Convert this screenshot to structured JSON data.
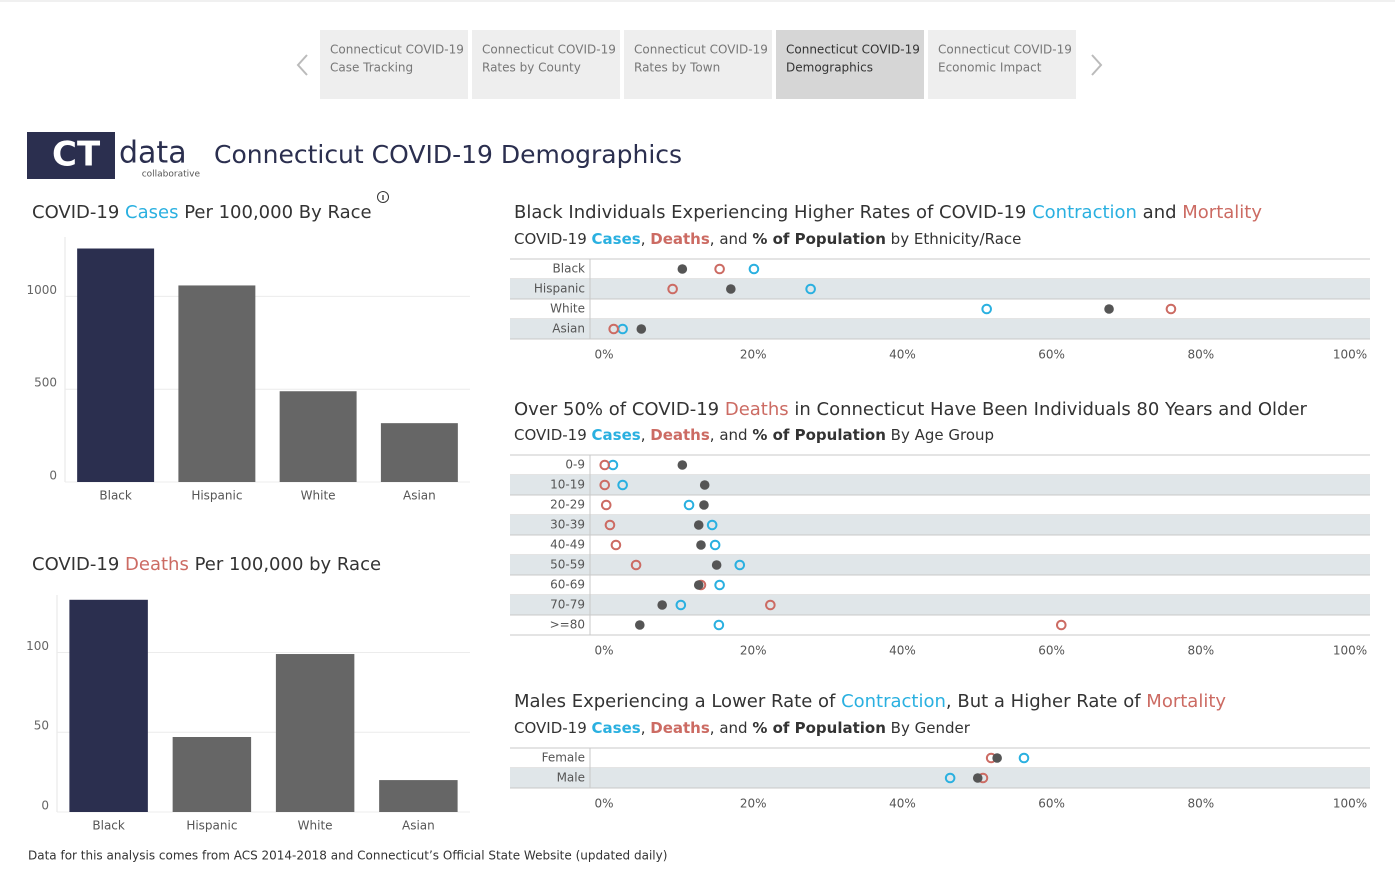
{
  "nav": {
    "tabs": [
      {
        "lines": [
          "Connecticut COVID-19",
          "Case Tracking"
        ]
      },
      {
        "lines": [
          "Connecticut COVID-19",
          "Rates by County"
        ]
      },
      {
        "lines": [
          "Connecticut COVID-19",
          "Rates by Town"
        ]
      },
      {
        "lines": [
          "Connecticut COVID-19",
          "Demographics"
        ]
      },
      {
        "lines": [
          "Connecticut COVID-19",
          "Economic Impact"
        ]
      }
    ],
    "active": 3
  },
  "header": {
    "logo": {
      "mark": "CT",
      "word": "data",
      "tagline": "collaborative"
    },
    "title": "Connecticut COVID-19 Demographics"
  },
  "chart_data": [
    {
      "type": "bar",
      "title": [
        {
          "text": "COVID-19 "
        },
        {
          "text": "Cases",
          "color": "#2ab0e0"
        },
        {
          "text": " Per 100,000 By Race"
        }
      ],
      "categories": [
        "Black",
        "Hispanic",
        "White",
        "Asian"
      ],
      "values": [
        1258,
        1059,
        489,
        317
      ],
      "colors": [
        "#2b2f4f",
        "#666666",
        "#666666",
        "#666666"
      ],
      "ylim": [
        0,
        1320
      ],
      "yticks": [
        0,
        500,
        1000
      ],
      "grid": true
    },
    {
      "type": "bar",
      "title": [
        {
          "text": "COVID-19 "
        },
        {
          "text": "Deaths",
          "color": "#cc6b63"
        },
        {
          "text": " Per 100,000 by Race"
        }
      ],
      "categories": [
        "Black",
        "Hispanic",
        "White",
        "Asian"
      ],
      "values": [
        133,
        47,
        99,
        20
      ],
      "colors": [
        "#2b2f4f",
        "#666666",
        "#666666",
        "#666666"
      ],
      "ylim": [
        0,
        136
      ],
      "yticks": [
        0,
        50,
        100
      ],
      "grid": true
    },
    {
      "type": "dot",
      "title": [
        {
          "text": "Black Individuals Experiencing Higher Rates of COVID-19 "
        },
        {
          "text": "Contraction",
          "color": "#2ab0e0"
        },
        {
          "text": " and "
        },
        {
          "text": "Mortality",
          "color": "#cc6b63"
        }
      ],
      "subtitle": [
        {
          "text": "COVID-19 "
        },
        {
          "text": "Cases",
          "color": "#2ab0e0",
          "bold": true
        },
        {
          "text": ", "
        },
        {
          "text": "Deaths",
          "color": "#cc6b63",
          "bold": true
        },
        {
          "text": ", and "
        },
        {
          "text": "% of Population",
          "bold": true
        },
        {
          "text": " by Ethnicity/Race"
        }
      ],
      "categories": [
        "Black",
        "Hispanic",
        "White",
        "Asian"
      ],
      "series": [
        {
          "color": "#2ab0e0",
          "marker": "hollow",
          "values": [
            20.1,
            27.7,
            51.3,
            2.5
          ]
        },
        {
          "color": "#cc6b63",
          "marker": "hollow",
          "values": [
            15.5,
            9.2,
            76.0,
            1.3
          ]
        },
        {
          "color": "#555555",
          "marker": "filled",
          "values": [
            10.5,
            17.0,
            67.7,
            5.0
          ]
        }
      ],
      "xlim": [
        0,
        100
      ],
      "xticks": [
        {
          "value": 0,
          "label": "0%"
        },
        {
          "value": 20,
          "label": "20%"
        },
        {
          "value": 40,
          "label": "40%"
        },
        {
          "value": 60,
          "label": "60%"
        },
        {
          "value": 80,
          "label": "80%"
        },
        {
          "value": 100,
          "label": "100%"
        }
      ],
      "row_shading": true
    },
    {
      "type": "dot",
      "title": [
        {
          "text": "Over 50% of COVID-19 "
        },
        {
          "text": "Deaths",
          "color": "#cc6b63"
        },
        {
          "text": " in Connecticut Have Been Individuals 80 Years and Older"
        }
      ],
      "subtitle": [
        {
          "text": "COVID-19 "
        },
        {
          "text": "Cases",
          "color": "#2ab0e0",
          "bold": true
        },
        {
          "text": ", "
        },
        {
          "text": "Deaths",
          "color": "#cc6b63",
          "bold": true
        },
        {
          "text": ", and "
        },
        {
          "text": "% of Population",
          "bold": true
        },
        {
          "text": " By Age Group"
        }
      ],
      "categories": [
        "0-9",
        "10-19",
        "20-29",
        "30-39",
        "40-49",
        "50-59",
        "60-69",
        "70-79",
        ">=80"
      ],
      "series": [
        {
          "color": "#2ab0e0",
          "marker": "hollow",
          "values": [
            1.2,
            2.5,
            11.4,
            14.5,
            14.9,
            18.2,
            15.5,
            10.3,
            15.4
          ]
        },
        {
          "color": "#cc6b63",
          "marker": "hollow",
          "values": [
            0.1,
            0.1,
            0.3,
            0.8,
            1.6,
            4.3,
            13.0,
            22.3,
            61.3
          ]
        },
        {
          "color": "#555555",
          "marker": "filled",
          "values": [
            10.5,
            13.5,
            13.4,
            12.7,
            13.0,
            15.1,
            12.7,
            7.8,
            4.8
          ]
        }
      ],
      "xlim": [
        0,
        100
      ],
      "xticks": [
        {
          "value": 0,
          "label": "0%"
        },
        {
          "value": 20,
          "label": "20%"
        },
        {
          "value": 40,
          "label": "40%"
        },
        {
          "value": 60,
          "label": "60%"
        },
        {
          "value": 80,
          "label": "80%"
        },
        {
          "value": 100,
          "label": "100%"
        }
      ],
      "row_shading": true
    },
    {
      "type": "dot",
      "title": [
        {
          "text": "Males Experiencing a Lower Rate of "
        },
        {
          "text": "Contraction",
          "color": "#2ab0e0"
        },
        {
          "text": ", But a Higher Rate of "
        },
        {
          "text": "Mortality",
          "color": "#cc6b63"
        }
      ],
      "subtitle": [
        {
          "text": "COVID-19 "
        },
        {
          "text": "Cases",
          "color": "#2ab0e0",
          "bold": true
        },
        {
          "text": ", "
        },
        {
          "text": "Deaths",
          "color": "#cc6b63",
          "bold": true
        },
        {
          "text": ", and "
        },
        {
          "text": "% of Population",
          "bold": true
        },
        {
          "text": " By Gender"
        }
      ],
      "categories": [
        "Female",
        "Male"
      ],
      "series": [
        {
          "color": "#2ab0e0",
          "marker": "hollow",
          "values": [
            56.3,
            46.4
          ]
        },
        {
          "color": "#cc6b63",
          "marker": "hollow",
          "values": [
            51.9,
            50.8
          ]
        },
        {
          "color": "#555555",
          "marker": "filled",
          "values": [
            52.7,
            50.1
          ]
        }
      ],
      "xlim": [
        0,
        100
      ],
      "xticks": [
        {
          "value": 0,
          "label": "0%"
        },
        {
          "value": 20,
          "label": "20%"
        },
        {
          "value": 40,
          "label": "40%"
        },
        {
          "value": 60,
          "label": "60%"
        },
        {
          "value": 80,
          "label": "80%"
        },
        {
          "value": 100,
          "label": "100%"
        }
      ],
      "row_shading": true
    }
  ],
  "footer": "Data for this analysis comes from ACS 2014-2018 and Connecticut’s Official State Website (updated daily)"
}
